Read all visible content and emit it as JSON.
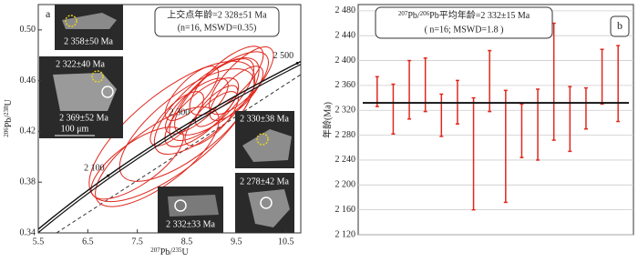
{
  "chart_data": [
    {
      "type": "concordia",
      "panel_label": "a",
      "xlabel_sup": "207",
      "xlabel_main": "Pb/",
      "xlabel_sup2": "235",
      "xlabel_end": "U",
      "ylabel_sup": "206",
      "ylabel_main": "Pb/",
      "ylabel_sup2": "238",
      "ylabel_end": "U",
      "xlim": [
        5.5,
        10.8
      ],
      "xticks": [
        5.5,
        6.5,
        7.5,
        8.5,
        9.5,
        10.5
      ],
      "ylim": [
        0.34,
        0.52
      ],
      "yticks": [
        0.34,
        0.38,
        0.42,
        0.46,
        {
          "value": 0.5,
          "label": "0.50"
        }
      ],
      "concordia_ticks": [
        {
          "value": 2100,
          "label": "2 100"
        },
        {
          "value": 2300,
          "label": "2 300"
        },
        {
          "value": 2500,
          "label": "2 500"
        }
      ],
      "annotation": [
        "上交点年龄=2 328±51 Ma",
        "(n=16, MSWD=0.35)"
      ],
      "ellipse_color": "#e0281e",
      "x": [
        8.2,
        8.5,
        7.9,
        7.5,
        8.9,
        9.0,
        9.2,
        9.5,
        8.7,
        9.0,
        8.8,
        9.3,
        8.6,
        9.6,
        8.3,
        9.1
      ],
      "y": [
        0.42,
        0.425,
        0.4,
        0.395,
        0.44,
        0.445,
        0.45,
        0.45,
        0.44,
        0.43,
        0.435,
        0.46,
        0.45,
        0.46,
        0.43,
        0.44
      ],
      "x_err": [
        1.6,
        1.3,
        1.2,
        0.9,
        1.0,
        0.8,
        0.9,
        0.5,
        0.6,
        0.5,
        0.7,
        0.7,
        0.5,
        0.6,
        0.5,
        0.4
      ],
      "y_err": [
        0.05,
        0.04,
        0.035,
        0.025,
        0.035,
        0.03,
        0.03,
        0.02,
        0.02,
        0.02,
        0.025,
        0.025,
        0.02,
        0.025,
        0.02,
        0.015
      ],
      "images": [
        {
          "labels": [
            "2 358±50 Ma"
          ]
        },
        {
          "labels": [
            "2 322±40 Ma",
            "2 369±52 Ma",
            "100 μm"
          ]
        },
        {
          "labels": [
            "2 330±38 Ma"
          ]
        },
        {
          "labels": [
            "2 278±42 Ma"
          ]
        },
        {
          "labels": [
            "2 332±33 Ma"
          ]
        }
      ]
    },
    {
      "type": "errorbar",
      "panel_label": "b",
      "ylabel": "年龄(Ma)",
      "annotation_sup": "207",
      "annotation_mid": "Pb/",
      "annotation_sup2": "206",
      "annotation_rest": "Pb平均年龄=2 332±15 Ma",
      "annotation2": "( n=16; MSWD=1.8 )",
      "ylim": [
        2120,
        2490
      ],
      "yticks": [
        {
          "value": 2120,
          "label": "2 120"
        },
        {
          "value": 2160,
          "label": "2 160"
        },
        {
          "value": 2200,
          "label": "2 200"
        },
        {
          "value": 2240,
          "label": "2 240"
        },
        {
          "value": 2280,
          "label": "2 280"
        },
        {
          "value": 2320,
          "label": "2 320"
        },
        {
          "value": 2360,
          "label": "2 360"
        },
        {
          "value": 2400,
          "label": "2 400"
        },
        {
          "value": 2440,
          "label": "2 440"
        },
        {
          "value": 2480,
          "label": "2 480"
        }
      ],
      "categories": [
        null,
        null,
        null,
        null,
        null,
        null,
        null,
        null,
        null,
        null,
        null,
        null,
        null,
        null,
        null,
        null
      ],
      "values": [
        2350,
        2322,
        2353,
        2361,
        2312,
        2333,
        2250,
        2367,
        2262,
        2287,
        2297,
        2366,
        2306,
        2323,
        2374,
        2363
      ],
      "errors": [
        24,
        40,
        47,
        43,
        34,
        35,
        90,
        49,
        90,
        43,
        57,
        94,
        52,
        33,
        44,
        61
      ],
      "color": "#e0281e",
      "mean": 2332,
      "grid": true
    }
  ]
}
